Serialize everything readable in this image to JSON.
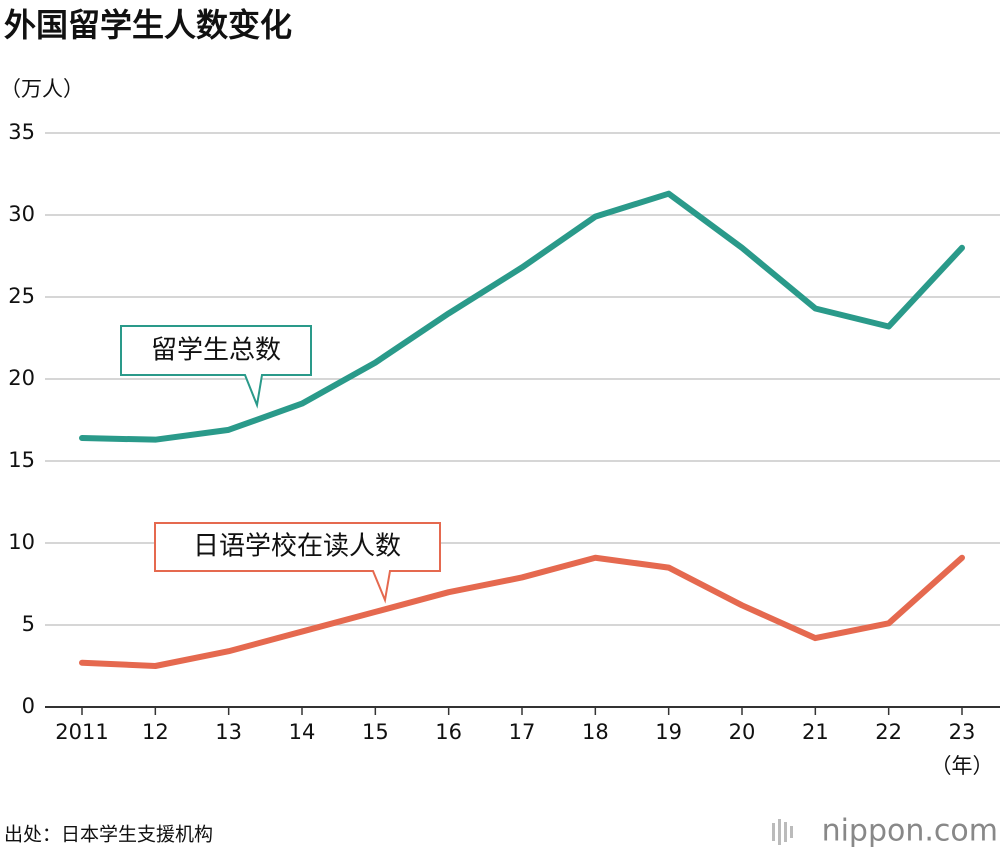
{
  "chart_data": {
    "type": "line",
    "title": "外国留学生人数变化",
    "y_unit": "（万人）",
    "x_unit": "（年）",
    "categories": [
      "2011",
      "12",
      "13",
      "14",
      "15",
      "16",
      "17",
      "18",
      "19",
      "20",
      "21",
      "22",
      "23"
    ],
    "series": [
      {
        "name": "留学生总数",
        "color": "#2a9a8a",
        "values": [
          16.4,
          16.3,
          16.9,
          18.5,
          21.0,
          24.0,
          26.8,
          29.9,
          31.3,
          28.0,
          24.3,
          23.2,
          28.0
        ]
      },
      {
        "name": "日语学校在读人数",
        "color": "#e5694f",
        "values": [
          2.7,
          2.5,
          3.4,
          4.6,
          5.8,
          7.0,
          7.9,
          9.1,
          8.5,
          6.2,
          4.2,
          5.1,
          9.1
        ]
      }
    ],
    "ylim": [
      0,
      35
    ],
    "yticks": [
      0,
      5,
      10,
      15,
      20,
      25,
      30,
      35
    ],
    "grid": true,
    "source": "出处：日本学生支援机构"
  },
  "logo": "nippon.com"
}
